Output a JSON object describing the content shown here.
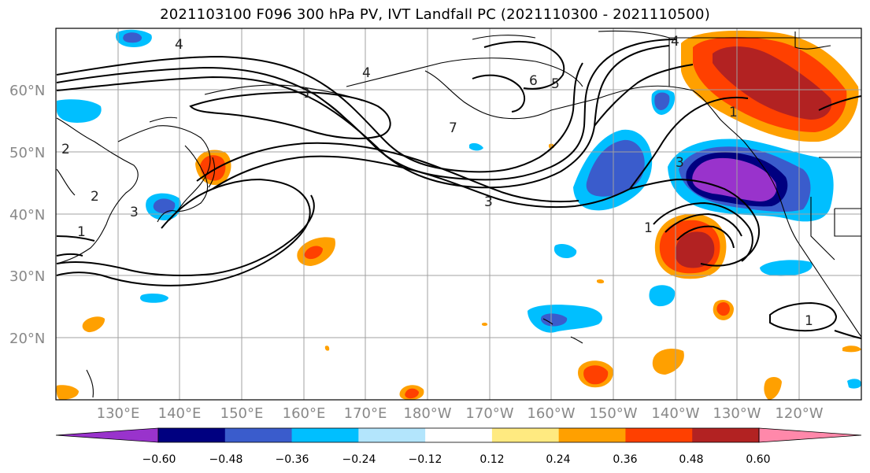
{
  "title": "2021103100 F096 300 hPa PV, IVT Landfall PC (2021110300 - 2021110500)",
  "map": {
    "projection": "PlateCarree",
    "lon_range": [
      120,
      250
    ],
    "lat_range": [
      10,
      70
    ],
    "lat_labels": [
      "60°N",
      "50°N",
      "40°N",
      "30°N",
      "20°N"
    ],
    "lat_values": [
      60,
      50,
      40,
      30,
      20
    ],
    "lon_labels": [
      "130°E",
      "140°E",
      "150°E",
      "160°E",
      "170°E",
      "180°W",
      "170°W",
      "160°W",
      "150°W",
      "140°W",
      "130°W",
      "120°W"
    ],
    "lon_values": [
      130,
      140,
      150,
      160,
      170,
      180,
      190,
      200,
      210,
      220,
      230,
      240
    ],
    "grid": true,
    "coastlines": true
  },
  "pv_contours": {
    "color": "#000000",
    "labels": [
      "4",
      "4",
      "6",
      "5",
      "7",
      "3",
      "1",
      "1",
      "1",
      "2",
      "3",
      "2",
      "3",
      "4",
      "1",
      "1"
    ]
  },
  "colorbar": {
    "orientation": "horizontal",
    "extend": "both",
    "tick_labels": [
      "−0.60",
      "−0.48",
      "−0.36",
      "−0.24",
      "−0.12",
      "0.12",
      "0.24",
      "0.36",
      "0.48",
      "0.60"
    ],
    "ticks": [
      -0.6,
      -0.48,
      -0.36,
      -0.24,
      -0.12,
      0.12,
      0.24,
      0.36,
      0.48,
      0.6
    ],
    "colors": [
      "#9933cc",
      "#000080",
      "#3a5ccc",
      "#00bfff",
      "#b3e5fc",
      "#ffffff",
      "#ffea80",
      "#ffa000",
      "#ff4000",
      "#b22222",
      "#ff88aa"
    ]
  }
}
